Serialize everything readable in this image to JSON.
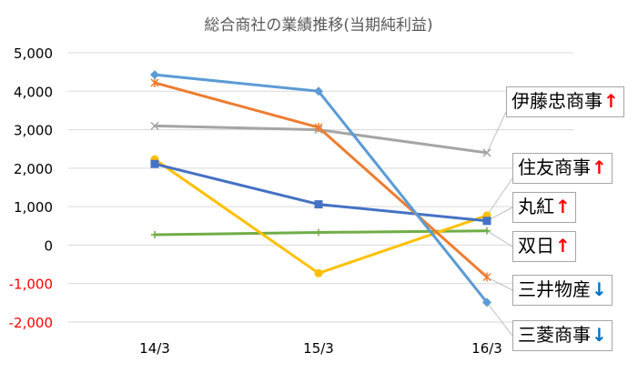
{
  "chart_data": {
    "type": "line",
    "title": "総合商社の業績推移(当期純利益)",
    "categories": [
      "14/3",
      "15/3",
      "16/3"
    ],
    "ylim": [
      -2000,
      5000
    ],
    "yticks": [
      "5,000",
      "4,000",
      "3,000",
      "2,000",
      "1,000",
      "0",
      "-1,000",
      "-2,000"
    ],
    "grid": true,
    "series": [
      {
        "name": "伊藤忠商事",
        "values": [
          3100,
          3000,
          2400
        ],
        "color": "#a5a5a5",
        "marker": "x",
        "trend": "↑",
        "trend_color": "#ff0000"
      },
      {
        "name": "住友商事",
        "values": [
          2230,
          -730,
          770
        ],
        "color": "#ffc000",
        "marker": "circle",
        "trend": "↑",
        "trend_color": "#ff0000"
      },
      {
        "name": "丸紅",
        "values": [
          2110,
          1060,
          630
        ],
        "color": "#4472c4",
        "marker": "square",
        "trend": "↑",
        "trend_color": "#ff0000"
      },
      {
        "name": "双日",
        "values": [
          270,
          330,
          370
        ],
        "color": "#70ad47",
        "marker": "plus",
        "trend": "↑",
        "trend_color": "#ff0000"
      },
      {
        "name": "三井物産",
        "values": [
          4220,
          3060,
          -830
        ],
        "color": "#ed7d31",
        "marker": "star",
        "trend": "↓",
        "trend_color": "#0070c0"
      },
      {
        "name": "三菱商事",
        "values": [
          4430,
          4000,
          -1490
        ],
        "color": "#5b9bd5",
        "marker": "diamond",
        "trend": "↓",
        "trend_color": "#0070c0"
      }
    ]
  }
}
